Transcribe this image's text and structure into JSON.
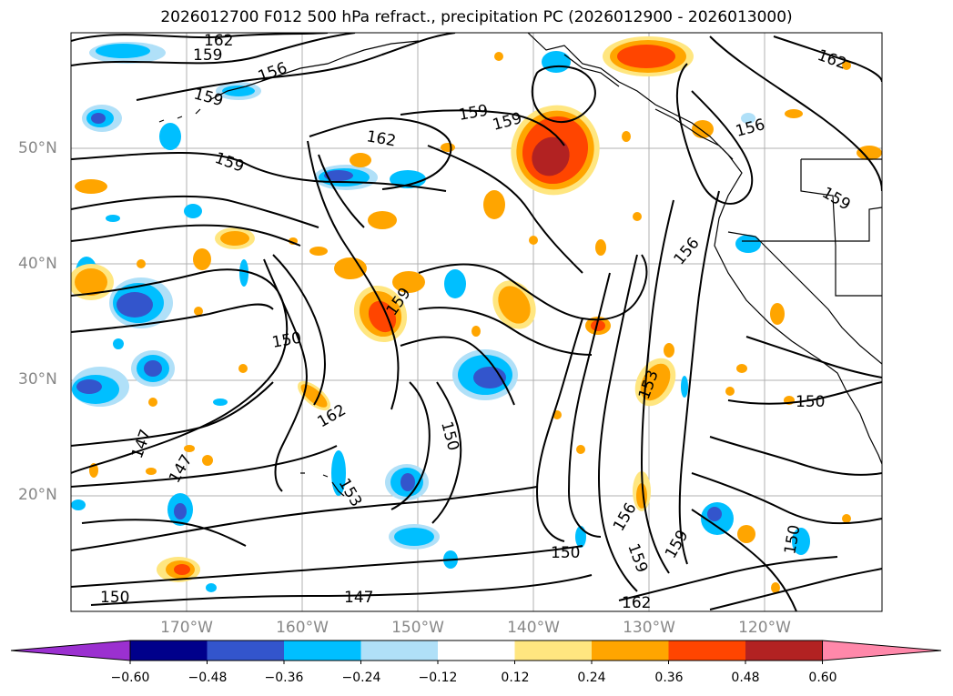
{
  "title": "2026012700 F012 500 hPa refract., precipitation PC (2026012900 - 2026013000)",
  "map": {
    "lat_labels": [
      "50°N",
      "40°N",
      "30°N",
      "20°N"
    ],
    "lon_labels": [
      "170°W",
      "160°W",
      "150°W",
      "140°W",
      "130°W",
      "120°W"
    ],
    "contour_labels": [
      "162",
      "159",
      "156",
      "159",
      "159",
      "162",
      "159",
      "159",
      "156",
      "162",
      "159",
      "156",
      "150",
      "159",
      "162",
      "150",
      "147",
      "147",
      "153",
      "150",
      "153",
      "156",
      "159",
      "159",
      "150",
      "150",
      "147",
      "162",
      "150"
    ],
    "colors": {
      "land_lines": "#000000",
      "grid": "#b0b0b0",
      "contours": "#000000"
    }
  },
  "chart_data": {
    "type": "heatmap",
    "colorbar": {
      "ticks": [
        "−0.60",
        "−0.48",
        "−0.36",
        "−0.24",
        "−0.12",
        "0.12",
        "0.24",
        "0.36",
        "0.48",
        "0.60"
      ],
      "bins": [
        "#9b30d0",
        "#00008b",
        "#3355cc",
        "#00bfff",
        "#b0e0f8",
        "#ffffff",
        "#ffe680",
        "#ffa500",
        "#ff4500",
        "#b22222",
        "#ff88aa"
      ]
    }
  }
}
